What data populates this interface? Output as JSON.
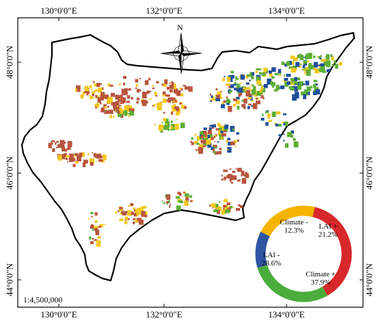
{
  "map": {
    "scale": "1:4,500,000",
    "north_label": "N",
    "ticks": {
      "top": [
        "130°0'0\"E",
        "132°0'0\"E",
        "134°0'0\"E"
      ],
      "bottom": [
        "130°0'0\"E",
        "132°0'0\"E",
        "134°0'0\"E"
      ],
      "left": [
        "48°0'0\"N",
        "46°0'0\"N",
        "44°0'0\"N"
      ],
      "right": [
        "48°0'0\"N",
        "46°0'0\"N",
        "44°0'0\"N"
      ]
    },
    "legend_colors": {
      "climate_minus": "#2e54a3",
      "lai_plus": "#f5b400",
      "climate_plus": "#d8282b",
      "lai_minus": "#4aad3c"
    },
    "map_patch_colors": {
      "brown": "#b8543e",
      "yellow": "#f2c81c",
      "green": "#5cae34",
      "blue": "#1f4e9a"
    }
  },
  "chart_data": {
    "type": "pie",
    "variant": "donut",
    "slices": [
      {
        "label": "Climate -",
        "value": 12.3,
        "value_label": "12.3%",
        "color": "#2e54a3"
      },
      {
        "label": "LAI +",
        "value": 21.2,
        "value_label": "21.2%",
        "color": "#f5b400"
      },
      {
        "label": "Climate +",
        "value": 37.9,
        "value_label": "37.9%",
        "color": "#d8282b"
      },
      {
        "label": "LAI -",
        "value": 28.6,
        "value_label": "28.6%",
        "color": "#4aad3c"
      }
    ]
  }
}
